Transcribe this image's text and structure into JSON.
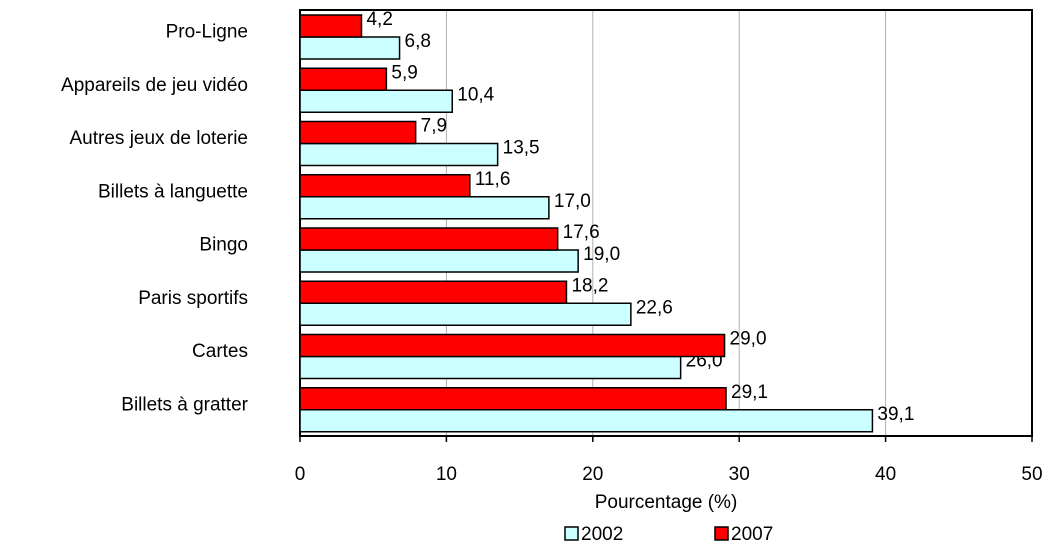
{
  "chart_data": {
    "type": "hbar",
    "categories": [
      "Pro-Ligne",
      "Appareils de jeu vidéo",
      "Autres jeux de loterie",
      "Billets à languette",
      "Bingo",
      "Paris sportifs",
      "Cartes",
      "Billets à gratter"
    ],
    "series": [
      {
        "name": "2002",
        "color": "#ccffff",
        "values": [
          6.8,
          10.4,
          13.5,
          17.0,
          19.0,
          22.6,
          26.0,
          39.1
        ],
        "value_labels": [
          "6,8",
          "10,4",
          "13,5",
          "17,0",
          "19,0",
          "22,6",
          "26,0",
          "39,1"
        ]
      },
      {
        "name": "2007",
        "color": "#ff0000",
        "values": [
          4.2,
          5.9,
          7.9,
          11.6,
          17.6,
          18.2,
          29.0,
          29.1
        ],
        "value_labels": [
          "4,2",
          "5,9",
          "7,9",
          "11,6",
          "17,6",
          "18,2",
          "29,0",
          "29,1"
        ]
      }
    ],
    "xlabel": "Pourcentage (%)",
    "xlim": [
      0,
      50
    ],
    "xticks": [
      0,
      10,
      20,
      30,
      40,
      50
    ],
    "grid": true
  }
}
